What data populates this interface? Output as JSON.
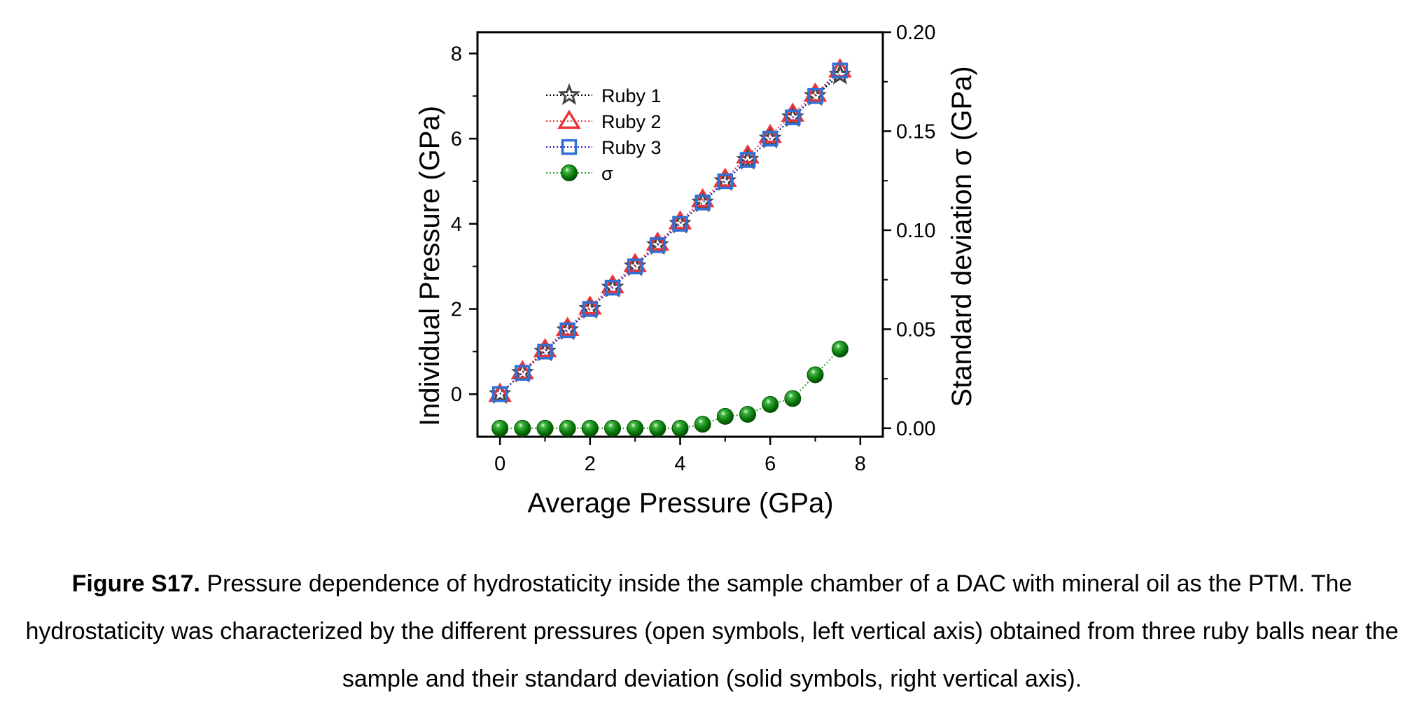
{
  "chart_data": {
    "type": "scatter",
    "xlabel": "Average Pressure (GPa)",
    "ylabel": "Individual Pressure (GPa)",
    "y2label": "Standard deviation σ (GPa)",
    "xlim": [
      -0.5,
      8.5
    ],
    "ylim": [
      -1.0,
      8.5
    ],
    "y2lim": [
      -0.0043,
      0.2
    ],
    "x_ticks": [
      "0",
      "2",
      "4",
      "6",
      "8"
    ],
    "y_ticks": [
      "0",
      "2",
      "4",
      "6",
      "8"
    ],
    "y2_ticks": [
      "0.00",
      "0.05",
      "0.10",
      "0.15",
      "0.20"
    ],
    "grid": false,
    "legend_position": "top-left",
    "x": [
      0,
      0.5,
      1.0,
      1.5,
      2.0,
      2.5,
      3.0,
      3.5,
      4.0,
      4.5,
      5.0,
      5.5,
      6.0,
      6.5,
      7.0,
      7.55
    ],
    "series": [
      {
        "name": "Ruby 1",
        "axis": "left",
        "marker": "star",
        "color": "#444444",
        "line_color": "#000000",
        "values": [
          0,
          0.5,
          1.0,
          1.5,
          2.0,
          2.5,
          3.0,
          3.5,
          4.0,
          4.5,
          5.0,
          5.5,
          6.0,
          6.5,
          7.0,
          7.5
        ]
      },
      {
        "name": "Ruby 2",
        "axis": "left",
        "marker": "triangle",
        "color": "#e8353a",
        "line_color": "#e8353a",
        "values": [
          0,
          0.53,
          1.05,
          1.55,
          2.05,
          2.55,
          3.05,
          3.55,
          4.05,
          4.57,
          5.05,
          5.6,
          6.08,
          6.58,
          7.05,
          7.62
        ]
      },
      {
        "name": "Ruby 3",
        "axis": "left",
        "marker": "square",
        "color": "#2f6fd6",
        "line_color": "#1c1ccc",
        "values": [
          0,
          0.5,
          1.0,
          1.5,
          2.0,
          2.5,
          3.0,
          3.5,
          4.0,
          4.5,
          5.0,
          5.5,
          6.0,
          6.5,
          7.0,
          7.6
        ]
      },
      {
        "name": "σ",
        "axis": "right",
        "marker": "sphere",
        "color": "#0a7a0a",
        "line_color": "#2aa02a",
        "values": [
          0,
          0,
          0,
          0,
          0,
          0,
          0,
          0,
          0,
          0.002,
          0.006,
          0.007,
          0.012,
          0.015,
          0.027,
          0.04
        ]
      }
    ]
  },
  "caption": {
    "label": "Figure S17.",
    "text": "Pressure dependence of hydrostaticity inside the sample chamber of a DAC with mineral oil as the PTM. The hydrostaticity was characterized by the different pressures (open symbols, left vertical axis) obtained from three ruby balls near the sample and their standard deviation (solid symbols, right vertical axis)."
  }
}
